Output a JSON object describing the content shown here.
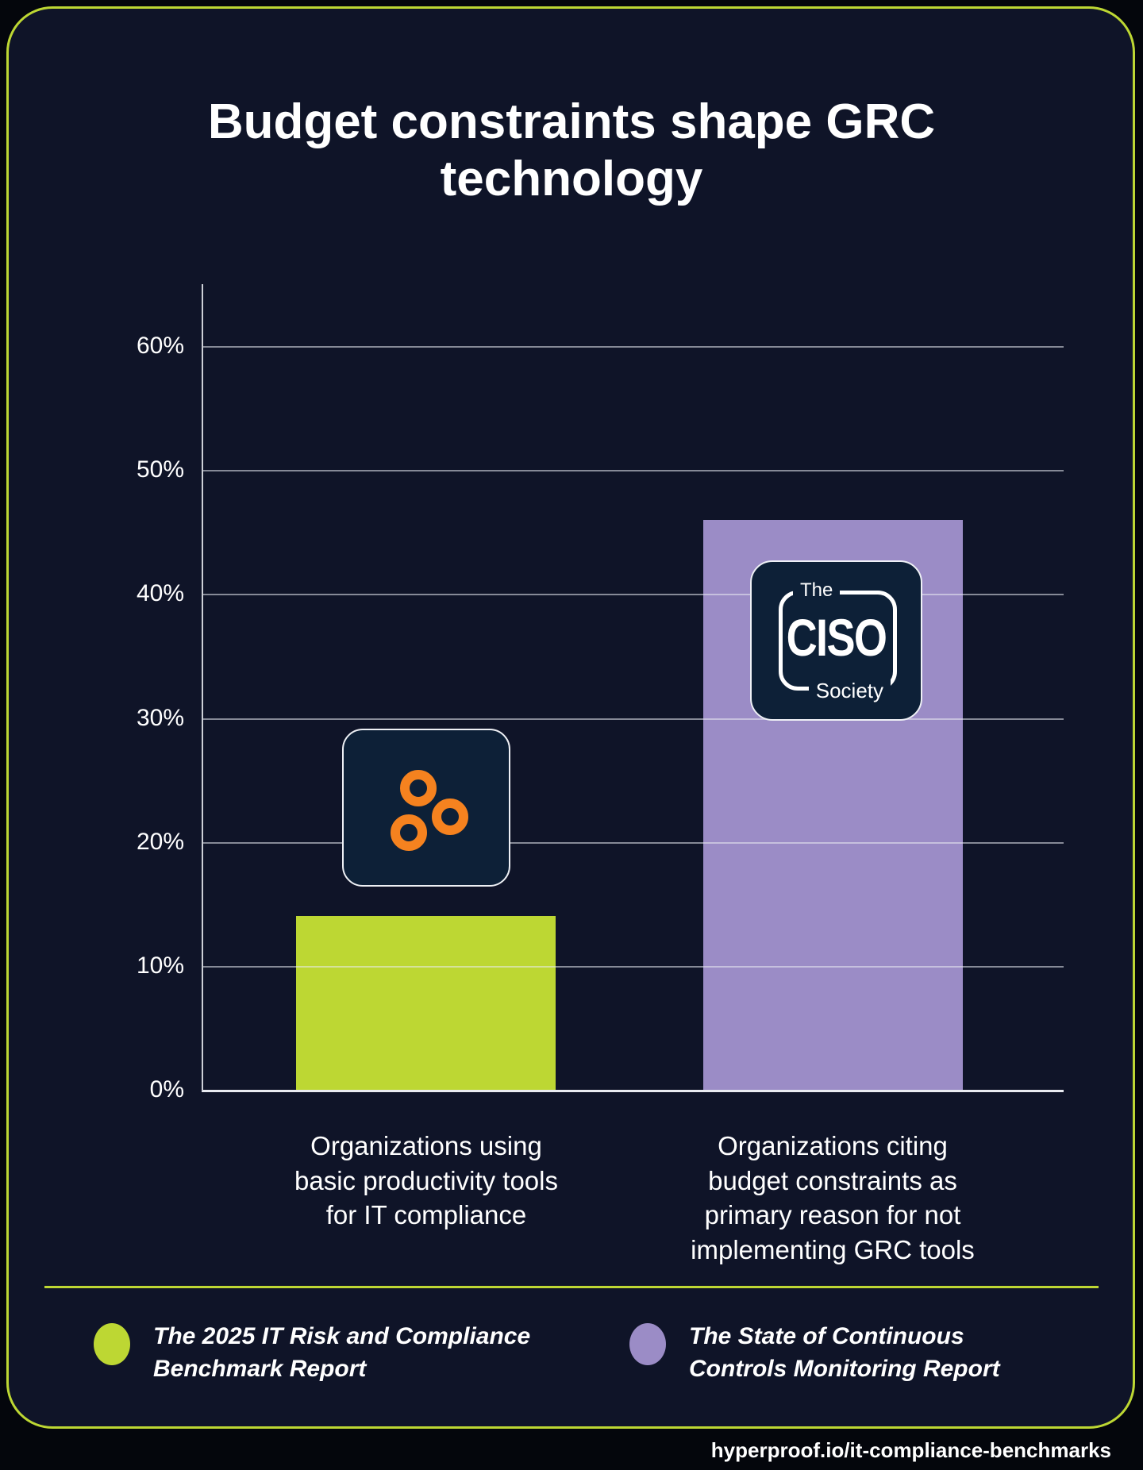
{
  "ui": {
    "title": "Budget constraints shape GRC\ntechnology",
    "categories": [
      "Organizations using\nbasic productivity tools\nfor IT compliance",
      "Organizations citing\nbudget constraints as\nprimary reason for not\nimplementing GRC tools"
    ],
    "legend": [
      {
        "label": "The 2025 IT Risk and Compliance\nBenchmark Report",
        "color": "#bdd733"
      },
      {
        "label": "The State of Continuous\nControls Monitoring Report",
        "color": "#9b8cc6"
      }
    ],
    "ciso_logo": {
      "top": "The",
      "main": "CISO",
      "bottom": "Society"
    },
    "hyperproof_logo": "three-orange-rings",
    "footer_url": "hyperproof.io/it-compliance-benchmarks"
  },
  "colors": {
    "panel_background": "#0f1428",
    "page_background": "#04060c",
    "accent_lime": "#bdd733",
    "accent_purple": "#9b8cc6",
    "logo_orange": "#f5821f",
    "logo_navy": "#0d2037",
    "text": "#ffffff",
    "gridline": "rgba(233,235,243,0.55)"
  },
  "chart_data": {
    "type": "bar",
    "title": "Budget constraints shape GRC technology",
    "categories": [
      "Organizations using basic productivity tools for IT compliance",
      "Organizations citing budget constraints as primary reason for not implementing GRC tools"
    ],
    "values": [
      14,
      46
    ],
    "unit": "%",
    "series_colors": [
      "#bdd733",
      "#9b8cc6"
    ],
    "ylim": [
      0,
      65
    ],
    "ytick_labels": [
      "0%",
      "10%",
      "20%",
      "30%",
      "40%",
      "50%",
      "60%"
    ],
    "grid": true,
    "xlabel": "",
    "ylabel": "",
    "legend": [
      "The 2025 IT Risk and Compliance Benchmark Report",
      "The State of Continuous Controls Monitoring Report"
    ],
    "legend_position": "bottom",
    "bar_logos": [
      "Hyperproof",
      "The CISO Society"
    ]
  }
}
